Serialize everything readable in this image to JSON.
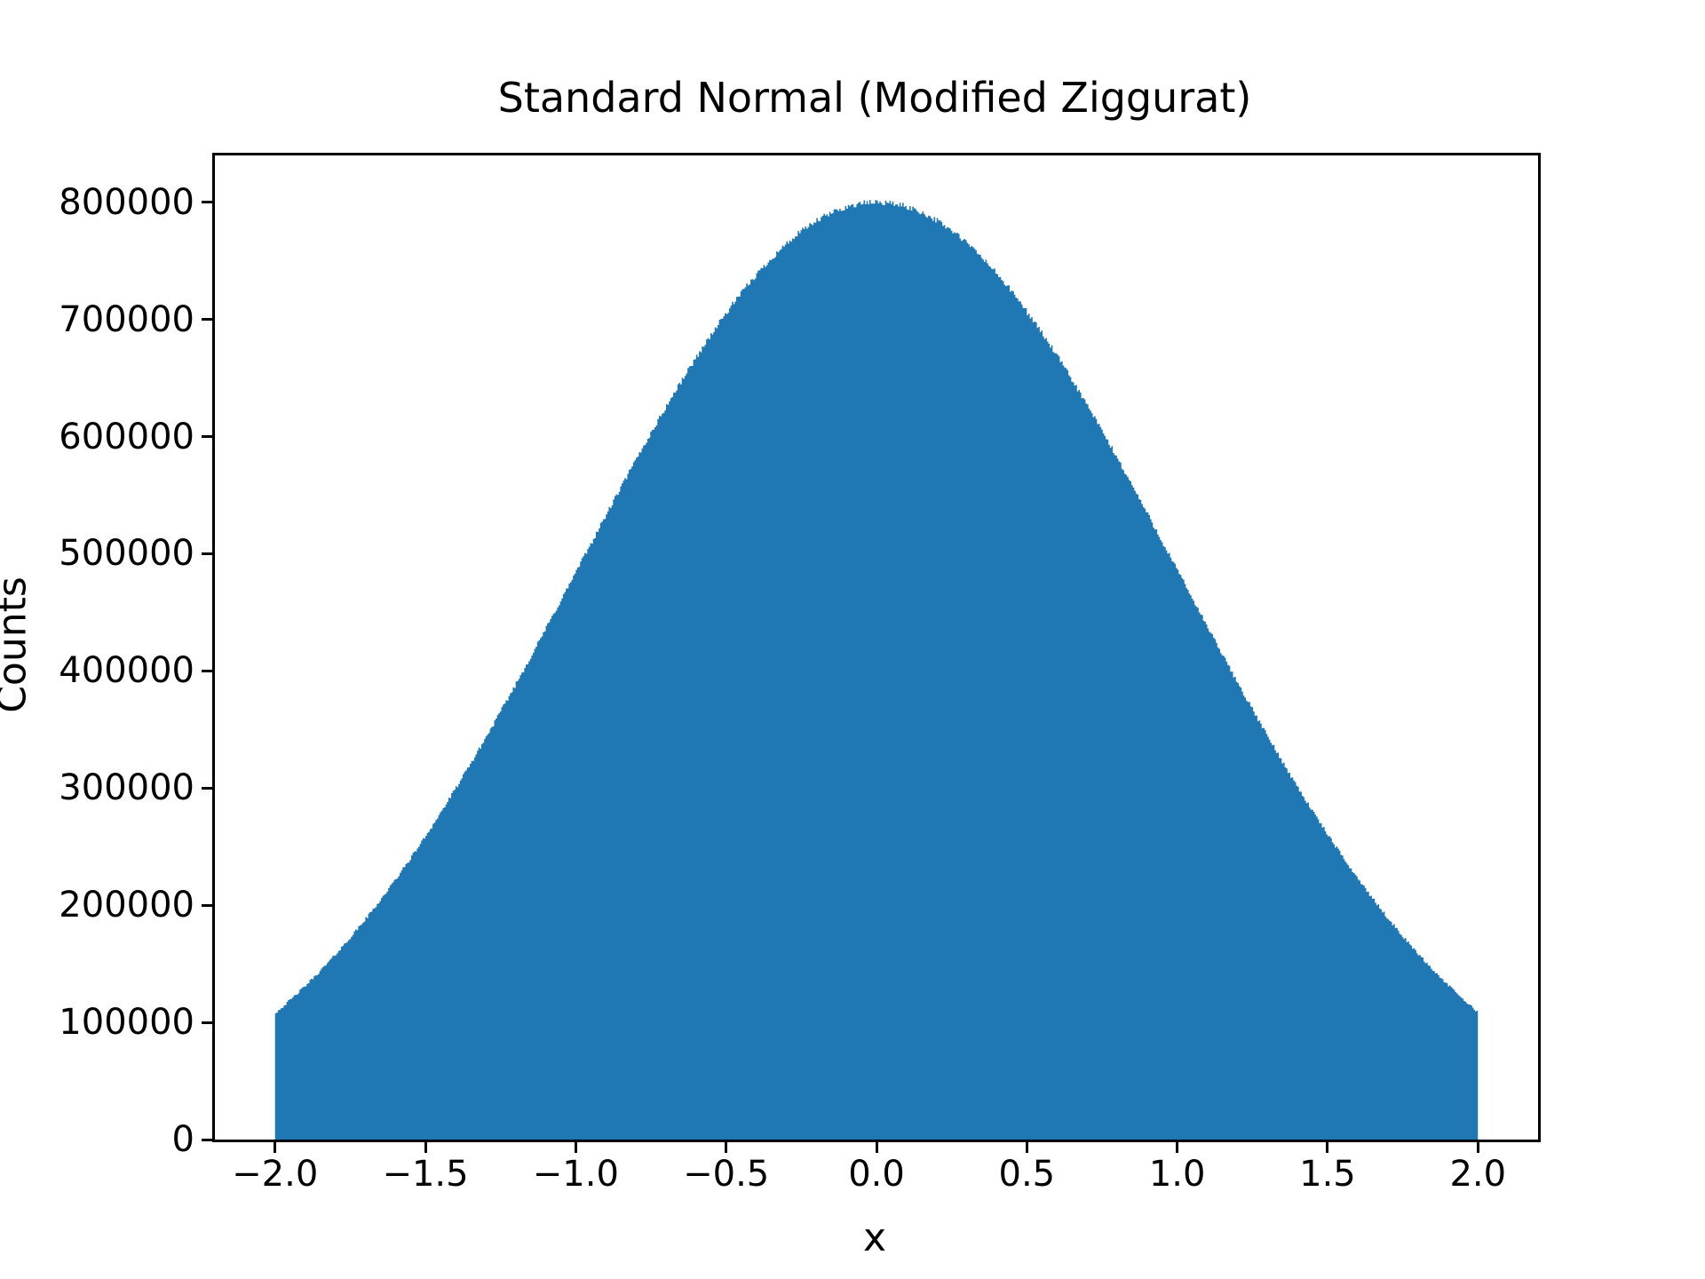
{
  "title": "Standard Normal (Modified Ziggurat)",
  "axes": {
    "xlabel": "x",
    "ylabel": "Counts",
    "xlim": [
      -2.2,
      2.2
    ],
    "ylim": [
      0,
      840000
    ],
    "grid": false,
    "x_ticks": [
      {
        "value": -2.0,
        "label": "−2.0"
      },
      {
        "value": -1.5,
        "label": "−1.5"
      },
      {
        "value": -1.0,
        "label": "−1.0"
      },
      {
        "value": -0.5,
        "label": "−0.5"
      },
      {
        "value": 0.0,
        "label": "0.0"
      },
      {
        "value": 0.5,
        "label": "0.5"
      },
      {
        "value": 1.0,
        "label": "1.0"
      },
      {
        "value": 1.5,
        "label": "1.5"
      },
      {
        "value": 2.0,
        "label": "2.0"
      }
    ],
    "y_ticks": [
      {
        "value": 0,
        "label": "0"
      },
      {
        "value": 100000,
        "label": "100000"
      },
      {
        "value": 200000,
        "label": "200000"
      },
      {
        "value": 300000,
        "label": "300000"
      },
      {
        "value": 400000,
        "label": "400000"
      },
      {
        "value": 500000,
        "label": "500000"
      },
      {
        "value": 600000,
        "label": "600000"
      },
      {
        "value": 700000,
        "label": "700000"
      },
      {
        "value": 800000,
        "label": "800000"
      }
    ]
  },
  "colors": {
    "fill": "#1f77b4",
    "axis": "#000000",
    "background": "#ffffff",
    "text": "#000000"
  },
  "chart_data": {
    "type": "bar",
    "subtype": "histogram",
    "title": "Standard Normal (Modified Ziggurat)",
    "xlabel": "x",
    "ylabel": "Counts",
    "xlim": [
      -2.2,
      2.2
    ],
    "ylim": [
      0,
      840000
    ],
    "legend": null,
    "grid": false,
    "distribution": {
      "name": "standard-normal-truncated",
      "mean": 0,
      "sigma": 1,
      "clip": [
        -2.0,
        2.0
      ],
      "peak_count": 800000,
      "edge_count": 108270,
      "noise_count_amplitude": 2200,
      "noise_base": 300,
      "columns": 840,
      "noise_seed": 42
    },
    "profile": {
      "x": [
        -2.0,
        -1.9,
        -1.8,
        -1.7,
        -1.6,
        -1.5,
        -1.4,
        -1.3,
        -1.2,
        -1.1,
        -1.0,
        -0.9,
        -0.8,
        -0.7,
        -0.6,
        -0.5,
        -0.4,
        -0.3,
        -0.2,
        -0.1,
        0.0,
        0.1,
        0.2,
        0.3,
        0.4,
        0.5,
        0.6,
        0.7,
        0.8,
        0.9,
        1.0,
        1.1,
        1.2,
        1.3,
        1.4,
        1.5,
        1.6,
        1.7,
        1.8,
        1.9,
        2.0
      ],
      "counts": [
        108268,
        131579,
        158319,
        188597,
        222430,
        259722,
        300249,
        343646,
        389402,
        436859,
        485225,
        533582,
        580919,
        626164,
        668216,
        705997,
        738493,
        764798,
        784159,
        796010,
        800000,
        796010,
        784159,
        764798,
        738493,
        705997,
        668216,
        626164,
        580919,
        533582,
        485225,
        436859,
        389402,
        343646,
        300249,
        259722,
        222430,
        188597,
        158319,
        131579,
        108268
      ]
    }
  }
}
